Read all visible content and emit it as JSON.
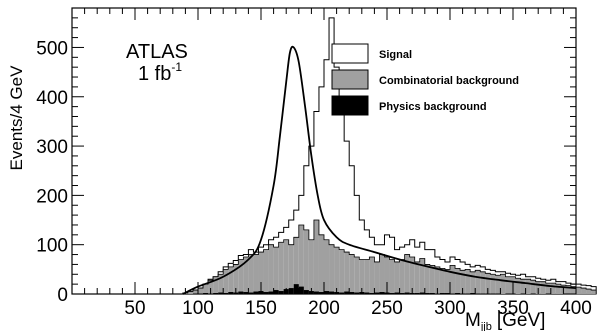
{
  "chart_data": {
    "type": "histogram",
    "title": "",
    "xlabel_main": "M",
    "xlabel_sub": "jjb",
    "xlabel_unit": "[GeV]",
    "ylabel": "Events/4 GeV",
    "xlim": [
      0,
      400
    ],
    "ylim": [
      0,
      580
    ],
    "x_ticks": [
      50,
      100,
      150,
      200,
      250,
      300,
      350,
      400
    ],
    "y_ticks": [
      0,
      100,
      200,
      300,
      400,
      500
    ],
    "bin_width": 4,
    "bin_start": 88,
    "annotation_line1": "ATLAS",
    "annotation_lumi": "1 fb",
    "annotation_lumi_exp": "-1",
    "legend_position": "top-right",
    "legend": [
      {
        "label": "Signal",
        "style": "open",
        "color": "#ffffff"
      },
      {
        "label": "Combinatorial background",
        "style": "filled",
        "color": "#a0a0a0"
      },
      {
        "label": "Physics background",
        "style": "filled",
        "color": "#000000"
      }
    ],
    "series": [
      {
        "name": "Signal",
        "style": "open",
        "values": [
          2,
          5,
          8,
          12,
          20,
          30,
          35,
          45,
          55,
          62,
          68,
          78,
          80,
          90,
          85,
          95,
          100,
          110,
          115,
          125,
          135,
          150,
          170,
          200,
          260,
          300,
          370,
          420,
          475,
          560,
          460,
          400,
          310,
          260,
          200,
          150,
          130,
          115,
          100,
          100,
          120,
          115,
          90,
          95,
          100,
          110,
          95,
          105,
          90,
          90,
          75,
          70,
          65,
          75,
          70,
          65,
          60,
          55,
          58,
          55,
          50,
          48,
          45,
          45,
          42,
          40,
          38,
          40,
          35,
          35,
          32,
          30,
          28,
          30,
          25,
          25,
          22,
          20,
          20,
          18,
          17,
          15
        ]
      },
      {
        "name": "Combinatorial background",
        "style": "filled",
        "values": [
          2,
          5,
          8,
          12,
          20,
          28,
          35,
          40,
          50,
          55,
          60,
          70,
          75,
          80,
          80,
          85,
          90,
          100,
          95,
          105,
          110,
          100,
          115,
          140,
          130,
          110,
          150,
          120,
          110,
          100,
          95,
          90,
          85,
          80,
          75,
          70,
          70,
          75,
          65,
          80,
          75,
          70,
          65,
          70,
          80,
          75,
          65,
          72,
          60,
          58,
          55,
          52,
          50,
          58,
          52,
          48,
          50,
          45,
          48,
          45,
          42,
          40,
          38,
          40,
          35,
          35,
          32,
          30,
          30,
          28,
          25,
          25,
          22,
          22,
          20,
          18,
          17,
          15,
          14,
          12,
          10,
          8
        ]
      },
      {
        "name": "Physics background",
        "style": "filled",
        "values": [
          0,
          0,
          1,
          1,
          2,
          1,
          2,
          3,
          2,
          4,
          3,
          5,
          4,
          3,
          5,
          6,
          4,
          5,
          8,
          6,
          10,
          12,
          20,
          15,
          8,
          6,
          5,
          4,
          6,
          5,
          4,
          3,
          5,
          4,
          3,
          4,
          3,
          2,
          3,
          4,
          3,
          2,
          3,
          2,
          3,
          2,
          2,
          3,
          2,
          2,
          1,
          2,
          2,
          1,
          2,
          1,
          1,
          2,
          1,
          1,
          1,
          1,
          1,
          0,
          1,
          1,
          0,
          1,
          0,
          1,
          0,
          0,
          1,
          0,
          0,
          0,
          1,
          0,
          0,
          0,
          0,
          0
        ]
      }
    ],
    "fit_curve": {
      "name": "Fit",
      "x": [
        88,
        100,
        120,
        140,
        150,
        160,
        165,
        170,
        173,
        176,
        180,
        185,
        190,
        195,
        200,
        210,
        220,
        240,
        260,
        280,
        300,
        320,
        340,
        360,
        380,
        400
      ],
      "y": [
        0,
        15,
        35,
        70,
        110,
        220,
        320,
        430,
        490,
        500,
        470,
        380,
        280,
        200,
        150,
        115,
        100,
        85,
        70,
        57,
        45,
        35,
        28,
        22,
        16,
        12
      ]
    }
  }
}
